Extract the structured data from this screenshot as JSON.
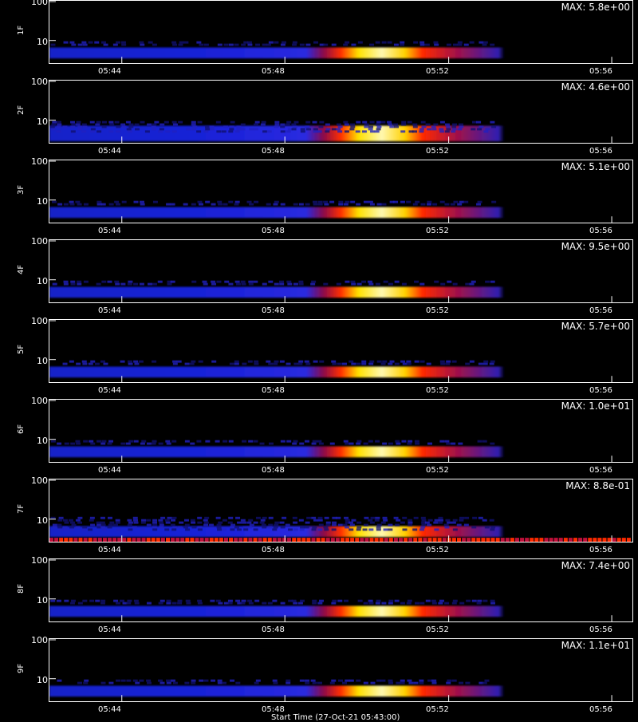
{
  "chart_data": {
    "type": "heatmap",
    "x_axis": {
      "ticks": [
        "05:44",
        "05:48",
        "05:52",
        "05:56"
      ]
    },
    "y_axis": {
      "ticks": [
        "100",
        "10"
      ],
      "scale": "log"
    },
    "colormap": [
      "#000000",
      "#1a1aff",
      "#8a0a4a",
      "#ff1a00",
      "#ffd400",
      "#ffffff"
    ],
    "panels": [
      {
        "label": "1F",
        "max_label": "MAX: 5.8e+00"
      },
      {
        "label": "2F",
        "max_label": "MAX: 4.6e+00"
      },
      {
        "label": "3F",
        "max_label": "MAX: 5.1e+00"
      },
      {
        "label": "4F",
        "max_label": "MAX: 9.5e+00"
      },
      {
        "label": "5F",
        "max_label": "MAX: 5.7e+00"
      },
      {
        "label": "6F",
        "max_label": "MAX: 1.0e+01"
      },
      {
        "label": "7F",
        "max_label": "MAX: 8.8e-01"
      },
      {
        "label": "8F",
        "max_label": "MAX: 7.4e+00"
      },
      {
        "label": "9F",
        "max_label": "MAX: 1.1e+01"
      }
    ],
    "xlabel": "Start Time (27-Oct-21 05:43:00)"
  }
}
